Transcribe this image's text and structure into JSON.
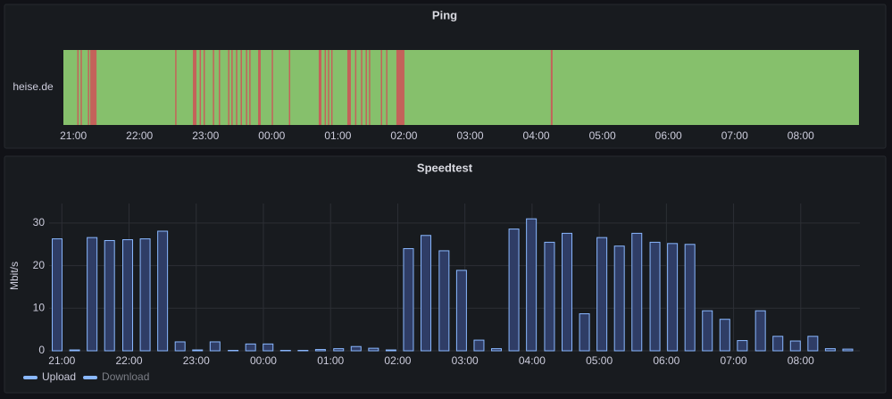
{
  "chart_data": [
    {
      "type": "timeline",
      "title": "Ping",
      "row_label": "heise.de",
      "base_color": "#86c06c",
      "color": "#c4625a",
      "segments": [
        [
          21.06,
          21.08
        ],
        [
          21.11,
          21.13
        ],
        [
          21.22,
          21.24
        ],
        [
          21.256,
          21.351
        ],
        [
          22.54,
          22.56
        ],
        [
          22.808,
          22.862
        ],
        [
          22.91,
          22.93
        ],
        [
          22.97,
          22.99
        ],
        [
          23.11,
          23.13
        ],
        [
          23.2,
          23.22
        ],
        [
          23.34,
          23.36
        ],
        [
          23.39,
          23.41
        ],
        [
          23.46,
          23.48
        ],
        [
          23.53,
          23.55
        ],
        [
          23.61,
          23.63
        ],
        [
          23.66,
          23.68
        ],
        [
          23.794,
          23.834
        ],
        [
          24.0,
          24.02
        ],
        [
          24.26,
          24.28
        ],
        [
          24.711,
          24.752
        ],
        [
          24.8,
          24.82
        ],
        [
          24.85,
          24.87
        ],
        [
          24.9,
          24.92
        ],
        [
          25.143,
          25.197
        ],
        [
          25.26,
          25.28
        ],
        [
          25.35,
          25.37
        ],
        [
          25.42,
          25.44
        ],
        [
          25.47,
          25.49
        ],
        [
          25.65,
          25.67
        ],
        [
          25.73,
          25.75
        ],
        [
          25.885,
          26.007
        ],
        [
          28.22,
          28.247
        ]
      ],
      "xlim": [
        20.85,
        32.88
      ],
      "xticks": [
        {
          "value": 21,
          "label": "21:00"
        },
        {
          "value": 22,
          "label": "22:00"
        },
        {
          "value": 23,
          "label": "23:00"
        },
        {
          "value": 24,
          "label": "00:00"
        },
        {
          "value": 25,
          "label": "01:00"
        },
        {
          "value": 26,
          "label": "02:00"
        },
        {
          "value": 27,
          "label": "03:00"
        },
        {
          "value": 28,
          "label": "04:00"
        },
        {
          "value": 29,
          "label": "05:00"
        },
        {
          "value": 30,
          "label": "06:00"
        },
        {
          "value": 31,
          "label": "07:00"
        },
        {
          "value": 32,
          "label": "08:00"
        }
      ]
    },
    {
      "type": "bar",
      "title": "Speedtest",
      "ylabel": "Mbit/s",
      "x": [
        20.93,
        21.19,
        21.45,
        21.71,
        21.98,
        22.24,
        22.5,
        22.76,
        23.02,
        23.28,
        23.55,
        23.81,
        24.07,
        24.33,
        24.59,
        24.85,
        25.12,
        25.38,
        25.64,
        25.9,
        26.16,
        26.42,
        26.69,
        26.95,
        27.21,
        27.47,
        27.73,
        27.99,
        28.26,
        28.52,
        28.78,
        29.04,
        29.3,
        29.56,
        29.83,
        30.09,
        30.35,
        30.61,
        30.87,
        31.13,
        31.4,
        31.66,
        31.92,
        32.18,
        32.44,
        32.7
      ],
      "series": [
        {
          "name": "Upload",
          "color": "#8ab8ff",
          "values": [
            26.3,
            0.2,
            26.6,
            25.9,
            26.1,
            26.3,
            28.1,
            2.1,
            0.2,
            2.1,
            0.1,
            1.6,
            1.6,
            0.1,
            0.1,
            0.3,
            0.5,
            1.0,
            0.6,
            0.2,
            24.0,
            27.1,
            23.5,
            18.9,
            2.5,
            0.5,
            28.6,
            31.0,
            25.5,
            27.6,
            8.7,
            26.6,
            24.6,
            27.6,
            25.5,
            25.2,
            25.0,
            9.4,
            7.4,
            2.4,
            9.4,
            3.4,
            2.3,
            3.4,
            0.5,
            0.4
          ]
        },
        {
          "name": "Download",
          "color": "#8ab8ff",
          "hidden": true,
          "values": [
            null,
            null,
            null,
            null,
            null,
            null,
            null,
            null,
            null,
            null,
            null,
            null,
            null,
            null,
            null,
            null,
            null,
            null,
            null,
            null,
            null,
            null,
            null,
            null,
            null,
            null,
            null,
            null,
            null,
            null,
            null,
            null,
            null,
            null,
            null,
            null,
            null,
            null,
            null,
            null,
            null,
            null,
            null,
            null,
            null,
            null
          ]
        }
      ],
      "xlim": [
        20.81,
        32.88
      ],
      "xticks": [
        {
          "value": 21,
          "label": "21:00"
        },
        {
          "value": 22,
          "label": "22:00"
        },
        {
          "value": 23,
          "label": "23:00"
        },
        {
          "value": 24,
          "label": "00:00"
        },
        {
          "value": 25,
          "label": "01:00"
        },
        {
          "value": 26,
          "label": "02:00"
        },
        {
          "value": 27,
          "label": "03:00"
        },
        {
          "value": 28,
          "label": "04:00"
        },
        {
          "value": 29,
          "label": "05:00"
        },
        {
          "value": 30,
          "label": "06:00"
        },
        {
          "value": 31,
          "label": "07:00"
        },
        {
          "value": 32,
          "label": "08:00"
        }
      ],
      "ylim": [
        0,
        34.6
      ],
      "yticks": [
        0,
        10,
        20,
        30
      ],
      "grid": true
    }
  ]
}
